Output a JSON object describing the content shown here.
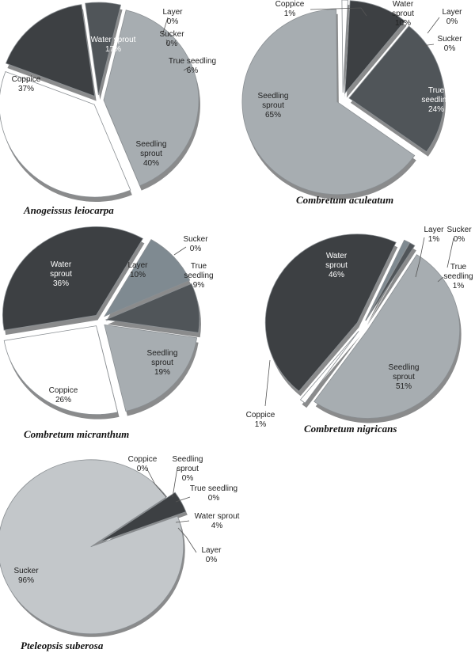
{
  "chart_data": [
    {
      "type": "pie",
      "title": "Anogeissus leiocarpa",
      "slices": [
        {
          "label": "Layer",
          "value": 0
        },
        {
          "label": "Sucker",
          "value": 0
        },
        {
          "label": "True seedling",
          "value": 6
        },
        {
          "label": "Seedling sprout",
          "value": 40
        },
        {
          "label": "Coppice",
          "value": 37
        },
        {
          "label": "Water sprout",
          "value": 17
        }
      ]
    },
    {
      "type": "pie",
      "title": "Combretum aculeatum",
      "slices": [
        {
          "label": "Water sprout",
          "value": 10
        },
        {
          "label": "Layer",
          "value": 0
        },
        {
          "label": "Sucker",
          "value": 0
        },
        {
          "label": "True seedling",
          "value": 24
        },
        {
          "label": "Seedling sprout",
          "value": 65
        },
        {
          "label": "Coppice",
          "value": 1
        }
      ]
    },
    {
      "type": "pie",
      "title": "Combretum micranthum",
      "slices": [
        {
          "label": "Sucker",
          "value": 0
        },
        {
          "label": "Layer",
          "value": 10
        },
        {
          "label": "True seedling",
          "value": 9
        },
        {
          "label": "Seedling sprout",
          "value": 19
        },
        {
          "label": "Coppice",
          "value": 26
        },
        {
          "label": "Water sprout",
          "value": 36
        }
      ]
    },
    {
      "type": "pie",
      "title": "Combretum nigricans",
      "slices": [
        {
          "label": "Layer",
          "value": 1
        },
        {
          "label": "Sucker",
          "value": 0
        },
        {
          "label": "True seedling",
          "value": 1
        },
        {
          "label": "Seedling sprout",
          "value": 51
        },
        {
          "label": "Coppice",
          "value": 1
        },
        {
          "label": "Water sprout",
          "value": 46
        }
      ]
    },
    {
      "type": "pie",
      "title": "Pteleopsis suberosa",
      "slices": [
        {
          "label": "Coppice",
          "value": 0
        },
        {
          "label": "Seedling sprout",
          "value": 0
        },
        {
          "label": "True seedling",
          "value": 0
        },
        {
          "label": "Water sprout",
          "value": 4
        },
        {
          "label": "Layer",
          "value": 0
        },
        {
          "label": "Sucker",
          "value": 96
        }
      ]
    }
  ],
  "colors": {
    "Water sprout": "#3d4043",
    "Layer": "#7f8a91",
    "Sucker": "#6e7479",
    "True seedling": "#505559",
    "Seedling sprout": "#a7adb1",
    "Coppice": "#ffffff",
    "Pteleopsis Sucker": "#c3c7ca",
    "outline": "#8a8f93",
    "shadow": "#2a2c2e"
  }
}
